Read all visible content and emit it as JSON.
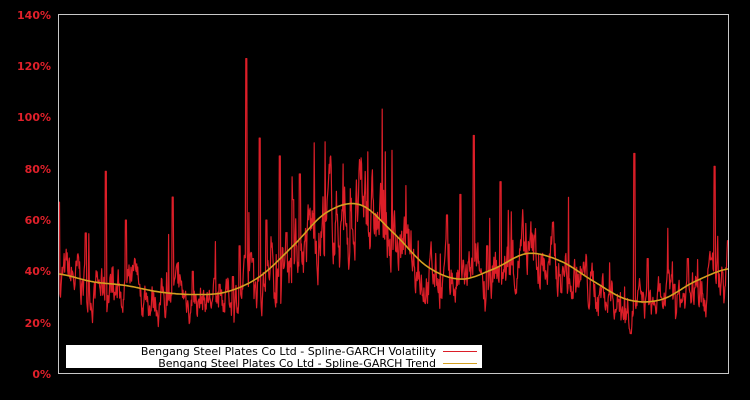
{
  "chart_data": {
    "type": "line",
    "title": "",
    "xlabel": "",
    "ylabel": "",
    "ylim": [
      0,
      140
    ],
    "yticks": [
      "0%",
      "20%",
      "40%",
      "60%",
      "80%",
      "100%",
      "120%",
      "140%"
    ],
    "grid": false,
    "legend_position": "lower-left",
    "background": "#000000",
    "series": [
      {
        "name": "Bengang Steel Plates Co Ltd - Spline-GARCH Volatility",
        "color": "#dc1e28",
        "x": [
          0,
          0.02,
          0.04,
          0.05,
          0.07,
          0.09,
          0.1,
          0.12,
          0.14,
          0.16,
          0.17,
          0.19,
          0.2,
          0.22,
          0.24,
          0.26,
          0.27,
          0.28,
          0.29,
          0.3,
          0.31,
          0.33,
          0.35,
          0.36,
          0.38,
          0.4,
          0.42,
          0.44,
          0.46,
          0.48,
          0.5,
          0.52,
          0.54,
          0.56,
          0.58,
          0.6,
          0.62,
          0.64,
          0.66,
          0.68,
          0.7,
          0.72,
          0.74,
          0.76,
          0.78,
          0.8,
          0.82,
          0.84,
          0.86,
          0.88,
          0.9,
          0.92,
          0.94,
          0.96,
          0.98,
          1.0
        ],
        "values": [
          67,
          30,
          55,
          28,
          79,
          32,
          60,
          35,
          25,
          28,
          69,
          24,
          40,
          28,
          35,
          38,
          50,
          123,
          45,
          92,
          60,
          85,
          68,
          78,
          52,
          60,
          40,
          36,
          45,
          30,
          42,
          55,
          35,
          40,
          62,
          70,
          93,
          50,
          75,
          40,
          45,
          33,
          27,
          40,
          30,
          35,
          23,
          25,
          86,
          45,
          30,
          35,
          45,
          30,
          81,
          52
        ]
      },
      {
        "name": "Bengang Steel Plates Co Ltd - Spline-GARCH Trend",
        "color": "#d4a021",
        "x": [
          0,
          0.05,
          0.1,
          0.15,
          0.2,
          0.25,
          0.3,
          0.35,
          0.4,
          0.45,
          0.5,
          0.55,
          0.6,
          0.65,
          0.7,
          0.75,
          0.8,
          0.85,
          0.9,
          0.95,
          1.0
        ],
        "values": [
          39,
          36,
          34.5,
          32,
          31,
          32,
          38,
          50,
          63,
          66,
          55,
          42,
          37,
          41,
          47,
          44,
          36,
          29,
          29,
          36,
          41
        ]
      }
    ]
  },
  "legend": {
    "items": [
      {
        "label": "Bengang Steel Plates Co Ltd - Spline-GARCH Volatility",
        "color": "#dc1e28"
      },
      {
        "label": "Bengang Steel Plates Co Ltd - Spline-GARCH Trend",
        "color": "#d4a021"
      }
    ]
  }
}
